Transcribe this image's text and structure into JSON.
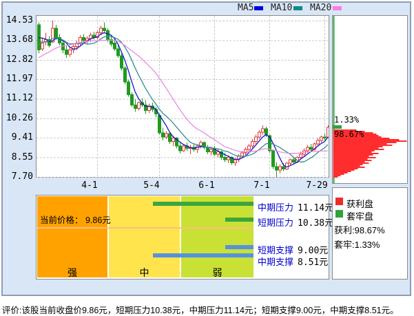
{
  "legend": {
    "items": [
      {
        "label": "MA5",
        "color": "#0000e0"
      },
      {
        "label": "MA10",
        "color": "#0b8c8c"
      },
      {
        "label": "MA20",
        "color": "#ff7ae6"
      }
    ]
  },
  "chart_data": {
    "type": "candlestick",
    "ylabel": "price (yuan)",
    "grid": true,
    "y_ticks": [
      14.53,
      13.68,
      12.82,
      11.97,
      11.12,
      10.26,
      9.41,
      8.55,
      7.7
    ],
    "x_ticks": [
      {
        "label": "4-1",
        "index": 17
      },
      {
        "label": "5-4",
        "index": 35
      },
      {
        "label": "6-1",
        "index": 51
      },
      {
        "label": "7-1",
        "index": 67
      },
      {
        "label": "7-29",
        "index": 83
      }
    ],
    "colors": {
      "up": "#df3a3a",
      "down": "#1e9b1e"
    },
    "series": [
      {
        "name": "MA5",
        "period": 5,
        "color": "#1414cc"
      },
      {
        "name": "MA10",
        "period": 10,
        "color": "#2e8f8f"
      },
      {
        "name": "MA20",
        "period": 20,
        "color": "#ee8ae0"
      }
    ],
    "ma_seed": [
      11.9,
      12.0,
      12.1,
      12.2,
      12.3,
      12.4,
      12.5,
      12.6,
      12.7,
      12.8,
      12.9,
      13.0,
      13.1,
      13.3,
      13.5,
      13.7,
      13.9,
      14.0,
      14.1
    ],
    "candles": [
      [
        14.35,
        14.45,
        13.1,
        13.25
      ],
      [
        13.3,
        13.75,
        13.2,
        13.6
      ],
      [
        13.6,
        14.0,
        13.45,
        13.7
      ],
      [
        13.7,
        13.85,
        13.35,
        13.45
      ],
      [
        13.6,
        14.53,
        13.55,
        14.2
      ],
      [
        14.2,
        14.35,
        13.7,
        13.8
      ],
      [
        13.8,
        13.95,
        13.45,
        13.55
      ],
      [
        13.55,
        13.7,
        13.1,
        13.25
      ],
      [
        13.25,
        13.45,
        12.9,
        13.05
      ],
      [
        13.05,
        13.35,
        12.95,
        13.25
      ],
      [
        13.25,
        13.5,
        13.1,
        13.4
      ],
      [
        13.4,
        13.65,
        13.25,
        13.55
      ],
      [
        13.55,
        13.9,
        13.45,
        13.8
      ],
      [
        13.8,
        13.95,
        13.55,
        13.65
      ],
      [
        13.65,
        13.85,
        13.5,
        13.75
      ],
      [
        13.75,
        14.0,
        13.6,
        13.9
      ],
      [
        13.9,
        14.05,
        13.7,
        13.8
      ],
      [
        13.8,
        14.1,
        13.7,
        14.0
      ],
      [
        14.0,
        14.3,
        13.9,
        14.2
      ],
      [
        14.2,
        14.45,
        14.0,
        14.1
      ],
      [
        14.1,
        14.2,
        13.6,
        13.7
      ],
      [
        13.7,
        13.9,
        13.4,
        13.5
      ],
      [
        13.55,
        13.75,
        13.2,
        13.3
      ],
      [
        13.3,
        13.45,
        12.9,
        13.0
      ],
      [
        13.0,
        13.1,
        12.35,
        12.45
      ],
      [
        12.45,
        12.55,
        11.75,
        11.85
      ],
      [
        11.85,
        11.95,
        11.2,
        11.3
      ],
      [
        11.3,
        11.4,
        10.75,
        10.85
      ],
      [
        10.85,
        11.1,
        10.55,
        10.7
      ],
      [
        10.7,
        11.0,
        10.6,
        10.95
      ],
      [
        10.95,
        11.15,
        10.75,
        10.85
      ],
      [
        10.85,
        11.05,
        10.45,
        10.6
      ],
      [
        10.6,
        10.9,
        10.5,
        10.8
      ],
      [
        10.8,
        10.95,
        10.55,
        10.65
      ],
      [
        10.65,
        10.75,
        10.3,
        10.45
      ],
      [
        10.4,
        10.45,
        9.55,
        9.62
      ],
      [
        9.62,
        9.85,
        9.3,
        9.45
      ],
      [
        9.45,
        9.7,
        9.35,
        9.6
      ],
      [
        9.6,
        9.65,
        9.15,
        9.25
      ],
      [
        9.25,
        9.5,
        9.05,
        9.4
      ],
      [
        9.4,
        9.45,
        8.95,
        9.05
      ],
      [
        9.05,
        9.25,
        8.72,
        8.85
      ],
      [
        8.85,
        9.15,
        8.8,
        9.05
      ],
      [
        9.05,
        9.2,
        8.85,
        8.95
      ],
      [
        8.95,
        9.1,
        8.7,
        9.0
      ],
      [
        9.0,
        9.15,
        8.8,
        8.9
      ],
      [
        8.9,
        9.1,
        8.75,
        9.05
      ],
      [
        9.05,
        9.3,
        8.95,
        9.2
      ],
      [
        9.2,
        9.25,
        8.9,
        9.0
      ],
      [
        9.0,
        9.1,
        8.7,
        8.8
      ],
      [
        8.8,
        9.0,
        8.65,
        8.9
      ],
      [
        8.9,
        9.05,
        8.6,
        8.7
      ],
      [
        8.7,
        8.9,
        8.55,
        8.8
      ],
      [
        8.8,
        8.85,
        8.45,
        8.55
      ],
      [
        8.55,
        8.75,
        8.35,
        8.45
      ],
      [
        8.45,
        8.65,
        8.3,
        8.55
      ],
      [
        8.55,
        8.6,
        8.22,
        8.32
      ],
      [
        8.32,
        8.55,
        8.18,
        8.45
      ],
      [
        8.45,
        8.7,
        8.35,
        8.6
      ],
      [
        8.6,
        8.85,
        8.5,
        8.75
      ],
      [
        8.75,
        9.0,
        8.65,
        8.9
      ],
      [
        8.9,
        9.15,
        8.8,
        9.05
      ],
      [
        9.05,
        9.35,
        8.95,
        9.25
      ],
      [
        9.25,
        9.55,
        9.15,
        9.45
      ],
      [
        9.45,
        9.75,
        9.35,
        9.65
      ],
      [
        9.65,
        9.95,
        9.55,
        9.8
      ],
      [
        9.8,
        9.9,
        9.45,
        9.55
      ],
      [
        9.5,
        9.55,
        8.75,
        8.85
      ],
      [
        8.85,
        8.9,
        8.05,
        8.15
      ],
      [
        8.15,
        8.35,
        7.7,
        8.0
      ],
      [
        8.0,
        8.25,
        7.85,
        8.15
      ],
      [
        8.15,
        8.3,
        7.95,
        8.05
      ],
      [
        8.05,
        8.35,
        8.0,
        8.3
      ],
      [
        8.3,
        8.5,
        8.2,
        8.45
      ],
      [
        8.45,
        8.55,
        8.25,
        8.35
      ],
      [
        8.35,
        8.6,
        8.3,
        8.55
      ],
      [
        8.55,
        8.8,
        8.45,
        8.7
      ],
      [
        8.7,
        8.95,
        8.6,
        8.85
      ],
      [
        8.85,
        9.1,
        8.75,
        9.0
      ],
      [
        9.0,
        9.15,
        8.8,
        8.9
      ],
      [
        8.9,
        9.2,
        8.85,
        9.15
      ],
      [
        9.15,
        9.4,
        9.05,
        9.3
      ],
      [
        9.3,
        9.5,
        9.2,
        9.45
      ],
      [
        9.45,
        9.6,
        9.3,
        9.4
      ],
      [
        9.45,
        9.95,
        9.4,
        9.86
      ]
    ],
    "profile": {
      "above_pct": "1.33%",
      "below_pct": "98.67%",
      "above_color": "#2fa33c",
      "below_color": "#ff2d2d",
      "above_bar_width": 13,
      "widths": [
        34,
        46,
        58,
        63,
        66,
        70,
        82,
        96,
        108,
        92,
        78,
        86,
        72,
        66,
        74,
        60,
        56,
        66,
        58,
        52,
        62,
        50,
        56,
        46,
        52,
        43,
        39,
        46,
        36,
        31,
        26,
        21,
        16,
        11,
        7
      ]
    }
  },
  "panel": {
    "current_price": "当前价格： 9.86元",
    "zones": [
      {
        "label": "强",
        "color": "#ffa200"
      },
      {
        "label": "中",
        "color": "#ffe44e"
      },
      {
        "label": "弱",
        "color": "#c9e135"
      }
    ],
    "levels": [
      {
        "label": "中期压力",
        "value": "11.14元",
        "bar": "long",
        "color": "#3ba63b"
      },
      {
        "label": "短期压力",
        "value": "10.38元",
        "bar": "short",
        "color": "#3ba63b"
      },
      {
        "label": "短期支撑",
        "value": "9.00元",
        "bar": "short",
        "color": "#5692dc"
      },
      {
        "label": "中期支撑",
        "value": "8.51元",
        "bar": "long",
        "color": "#5692dc"
      }
    ]
  },
  "right_panel": {
    "legend": [
      {
        "label": "获利盘",
        "color": "#ee2c2c"
      },
      {
        "label": "套牢盘",
        "color": "#2fa33c"
      }
    ],
    "profit_text": "获利:98.67%",
    "trapped_text": "套牢:1.33%"
  },
  "footer": {
    "text": "评价:该股当前收盘价9.86元，短期压力10.38元，中期压力11.14元；短期支撑9.00元，中期支撑8.51元。"
  }
}
